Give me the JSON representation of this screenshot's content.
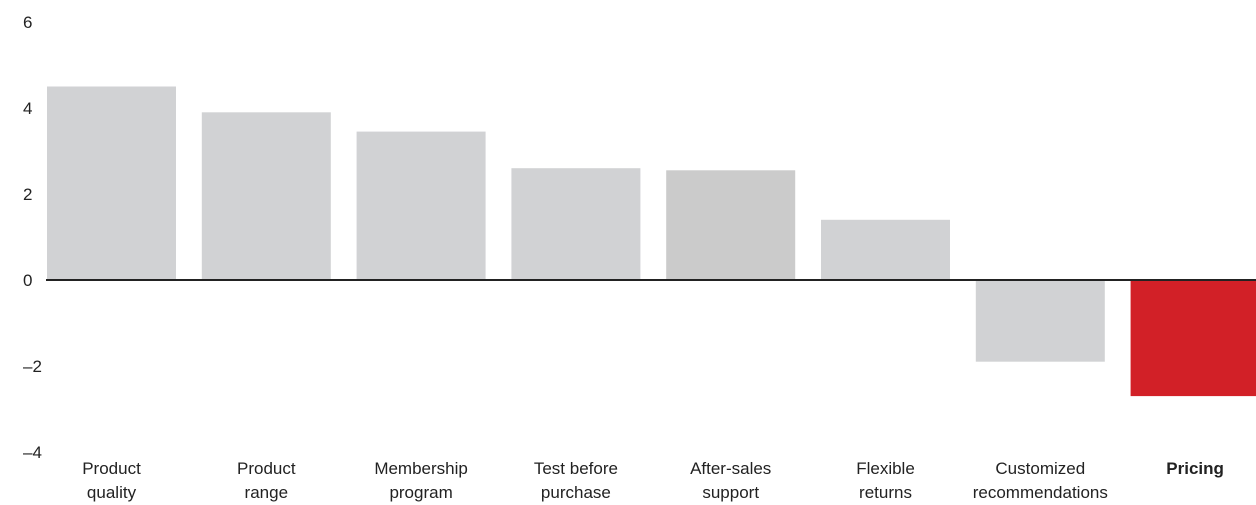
{
  "chart_data": {
    "type": "bar",
    "title": "",
    "xlabel": "",
    "ylabel": "",
    "ylim": [
      -4,
      6
    ],
    "yticks": [
      6,
      4,
      2,
      0,
      -2,
      -4
    ],
    "ytick_labels": [
      "6",
      "4",
      "2",
      "0",
      "–2",
      "–4"
    ],
    "grid": false,
    "categories": [
      [
        "Product",
        "quality"
      ],
      [
        "Product",
        "range"
      ],
      [
        "Membership",
        "program"
      ],
      [
        "Test before",
        "purchase"
      ],
      [
        "After-sales",
        "support"
      ],
      [
        "Flexible",
        "returns"
      ],
      [
        "Customized",
        "recommendations"
      ],
      [
        "Pricing"
      ]
    ],
    "values": [
      4.5,
      3.9,
      3.45,
      2.6,
      2.55,
      1.4,
      -1.9,
      -2.7
    ],
    "highlight_index": 7,
    "colors": {
      "bar": "#d1d2d4",
      "bar_alt": "#cbcbcb",
      "highlight": "#d22027",
      "axis": "#222222"
    }
  }
}
